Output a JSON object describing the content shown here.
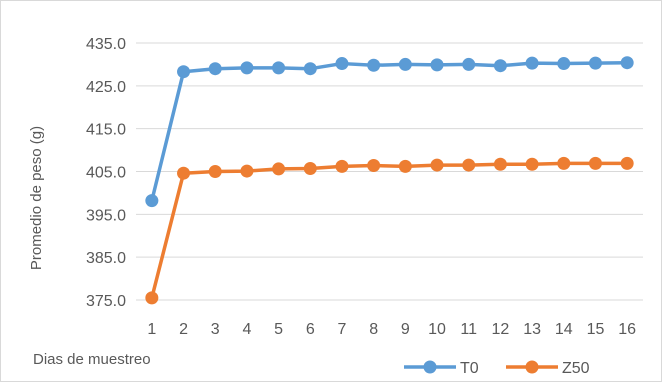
{
  "chart_data": {
    "type": "line",
    "title": "",
    "xlabel": "Dias de muestreo",
    "ylabel": "Promedio de peso (g)",
    "x": [
      1,
      2,
      3,
      4,
      5,
      6,
      7,
      8,
      9,
      10,
      11,
      12,
      13,
      14,
      15,
      16
    ],
    "y_ticks": [
      "375.0",
      "385.0",
      "395.0",
      "405.0",
      "415.0",
      "425.0",
      "435.0"
    ],
    "ylim": [
      375,
      435
    ],
    "grid": true,
    "legend_position": "bottom-right",
    "series": [
      {
        "name": "T0",
        "color": "#5B9BD5",
        "values": [
          398.2,
          428.3,
          429.0,
          429.2,
          429.2,
          429.0,
          430.2,
          429.8,
          430.0,
          429.9,
          430.0,
          429.7,
          430.3,
          430.2,
          430.3,
          430.4
        ]
      },
      {
        "name": "Z50",
        "color": "#ED7D31",
        "values": [
          375.5,
          404.6,
          405.0,
          405.1,
          405.6,
          405.7,
          406.2,
          406.4,
          406.2,
          406.5,
          406.5,
          406.7,
          406.7,
          406.9,
          406.9,
          406.9
        ]
      }
    ]
  }
}
